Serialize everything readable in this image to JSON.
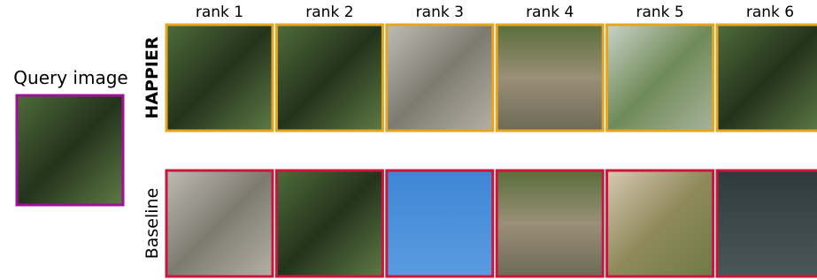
{
  "query": {
    "label": "Query image"
  },
  "columns": [
    "rank 1",
    "rank 2",
    "rank 3",
    "rank 4",
    "rank 5",
    "rank 6"
  ],
  "rows": [
    {
      "label": "HAPPIER"
    },
    {
      "label": "Baseline"
    }
  ]
}
